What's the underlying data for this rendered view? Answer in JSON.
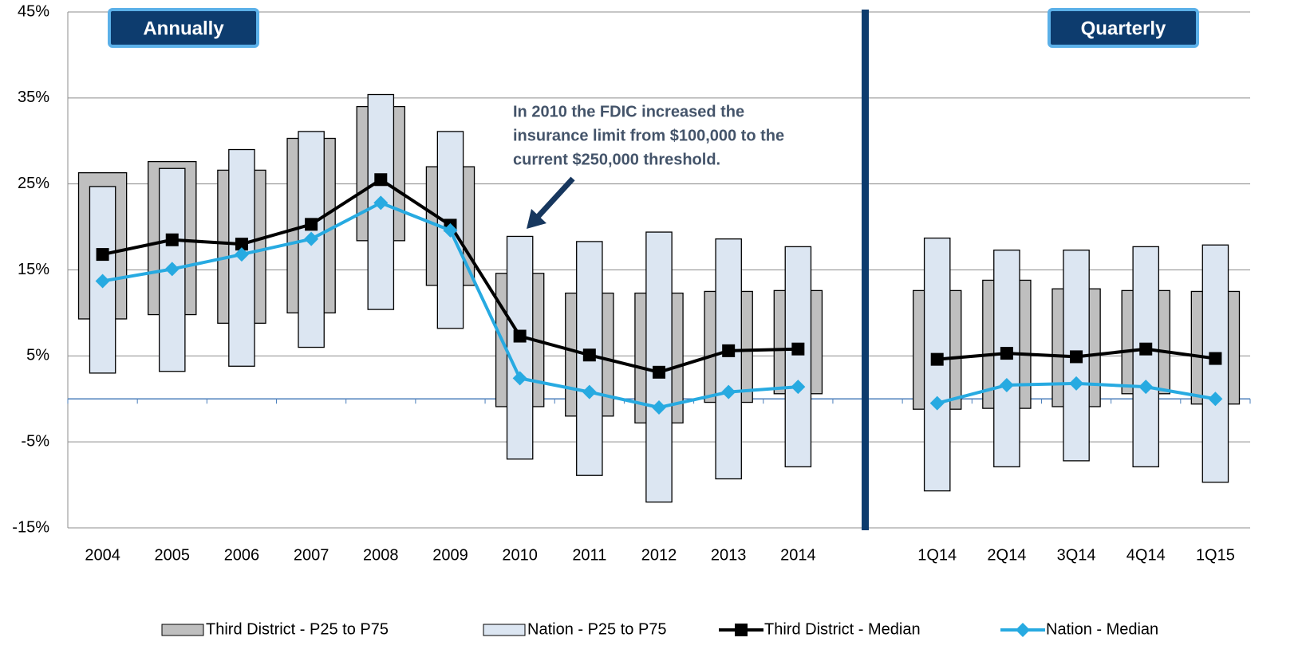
{
  "chart_data": {
    "type": "line",
    "categories": [
      "2004",
      "2005",
      "2006",
      "2007",
      "2008",
      "2009",
      "2010",
      "2011",
      "2012",
      "2013",
      "2014",
      null,
      "1Q14",
      "2Q14",
      "3Q14",
      "4Q14",
      "1Q15"
    ],
    "section_labels": [
      "Annually",
      "Quarterly"
    ],
    "annotation": [
      "In 2010 the FDIC increased the",
      "insurance limit from $100,000 to the",
      "current $250,000 threshold."
    ],
    "ylim": [
      -15,
      45
    ],
    "yticks": [
      {
        "value": -15,
        "label": "-15%"
      },
      {
        "value": -5,
        "label": "-5%"
      },
      {
        "value": 5,
        "label": "5%"
      },
      {
        "value": 15,
        "label": "15%"
      },
      {
        "value": 25,
        "label": "25%"
      },
      {
        "value": 35,
        "label": "35%"
      },
      {
        "value": 45,
        "label": "45%"
      }
    ],
    "grid": true,
    "legend": "bottom",
    "series": [
      {
        "name": "Third District - P25 to P75",
        "type": "range",
        "color": "#bfbfbf",
        "low": [
          9.3,
          9.8,
          8.8,
          10.0,
          18.4,
          13.2,
          -0.9,
          -2.0,
          -2.8,
          -0.4,
          0.6,
          null,
          -1.2,
          -1.1,
          -0.9,
          0.6,
          -0.6
        ],
        "high": [
          26.3,
          27.6,
          26.6,
          30.3,
          34.0,
          27.0,
          14.6,
          12.3,
          12.3,
          12.5,
          12.6,
          null,
          12.6,
          13.8,
          12.8,
          12.6,
          12.5
        ]
      },
      {
        "name": "Nation - P25 to P75",
        "type": "range",
        "color": "#dce6f2",
        "low": [
          3.0,
          3.2,
          3.8,
          6.0,
          10.4,
          8.2,
          -7.0,
          -8.9,
          -12.0,
          -9.3,
          -7.9,
          null,
          -10.7,
          -7.9,
          -7.2,
          -7.9,
          -9.7
        ],
        "high": [
          24.7,
          26.8,
          29.0,
          31.1,
          35.4,
          31.1,
          18.9,
          18.3,
          19.4,
          18.6,
          17.7,
          null,
          18.7,
          17.3,
          17.3,
          17.7,
          17.9
        ]
      },
      {
        "name": "Third District - Median",
        "type": "line",
        "color": "#000000",
        "marker": "square",
        "values": [
          16.8,
          18.5,
          18.0,
          20.3,
          25.5,
          20.2,
          7.3,
          5.1,
          3.1,
          5.6,
          5.8,
          null,
          4.6,
          5.3,
          4.9,
          5.8,
          4.7
        ]
      },
      {
        "name": "Nation - Median",
        "type": "line",
        "color": "#27aae1",
        "marker": "diamond",
        "values": [
          13.7,
          15.1,
          16.8,
          18.6,
          22.8,
          19.6,
          2.4,
          0.8,
          -1.0,
          0.8,
          1.4,
          null,
          -0.5,
          1.6,
          1.8,
          1.4,
          0.0
        ]
      }
    ]
  }
}
